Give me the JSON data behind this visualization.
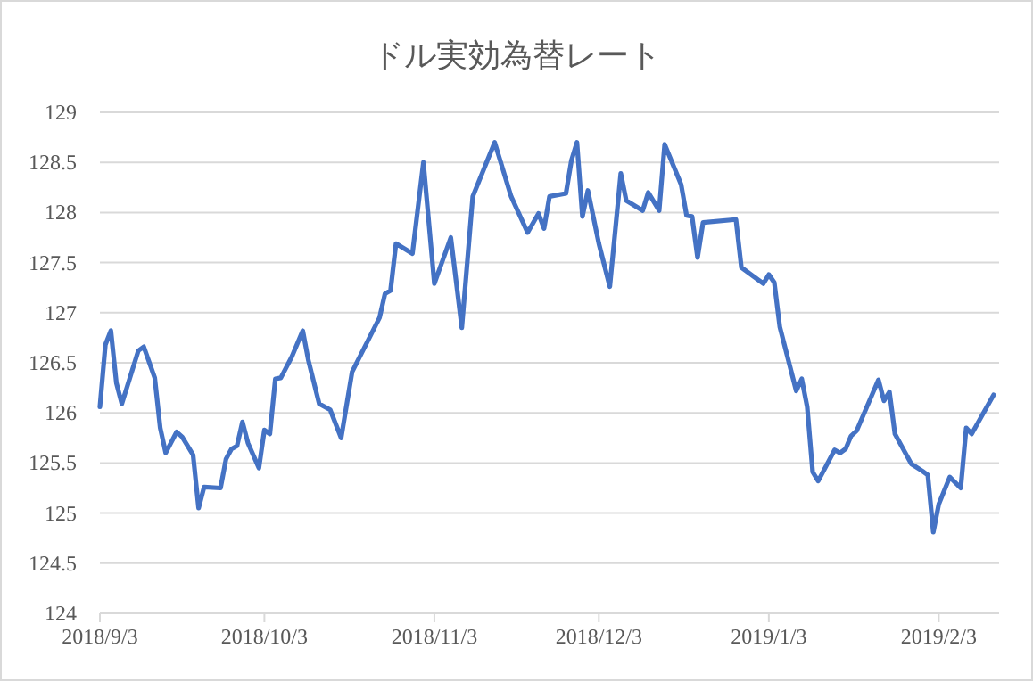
{
  "chart_data": {
    "type": "line",
    "title": "ドル実効為替レート",
    "x": [
      "2018-09-03",
      "2018-09-04",
      "2018-09-05",
      "2018-09-06",
      "2018-09-07",
      "2018-09-10",
      "2018-09-11",
      "2018-09-13",
      "2018-09-14",
      "2018-09-15",
      "2018-09-17",
      "2018-09-18",
      "2018-09-20",
      "2018-09-21",
      "2018-09-22",
      "2018-09-25",
      "2018-09-26",
      "2018-09-27",
      "2018-09-28",
      "2018-09-29",
      "2018-09-30",
      "2018-10-02",
      "2018-10-03",
      "2018-10-04",
      "2018-10-05",
      "2018-10-06",
      "2018-10-08",
      "2018-10-10",
      "2018-10-11",
      "2018-10-13",
      "2018-10-15",
      "2018-10-17",
      "2018-10-19",
      "2018-10-24",
      "2018-10-25",
      "2018-10-26",
      "2018-10-27",
      "2018-10-30",
      "2018-11-01",
      "2018-11-03",
      "2018-11-06",
      "2018-11-08",
      "2018-11-10",
      "2018-11-14",
      "2018-11-17",
      "2018-11-20",
      "2018-11-22",
      "2018-11-23",
      "2018-11-24",
      "2018-11-27",
      "2018-11-28",
      "2018-11-29",
      "2018-11-30",
      "2018-12-01",
      "2018-12-03",
      "2018-12-05",
      "2018-12-07",
      "2018-12-08",
      "2018-12-11",
      "2018-12-12",
      "2018-12-14",
      "2018-12-15",
      "2018-12-18",
      "2018-12-19",
      "2018-12-20",
      "2018-12-21",
      "2018-12-22",
      "2018-12-28",
      "2018-12-29",
      "2019-01-02",
      "2019-01-03",
      "2019-01-04",
      "2019-01-05",
      "2019-01-08",
      "2019-01-09",
      "2019-01-10",
      "2019-01-11",
      "2019-01-12",
      "2019-01-15",
      "2019-01-16",
      "2019-01-17",
      "2019-01-18",
      "2019-01-19",
      "2019-01-23",
      "2019-01-24",
      "2019-01-25",
      "2019-01-26",
      "2019-01-29",
      "2019-01-31",
      "2019-02-01",
      "2019-02-02",
      "2019-02-03",
      "2019-02-05",
      "2019-02-07",
      "2019-02-08",
      "2019-02-09",
      "2019-02-13"
    ],
    "series": [
      {
        "color": "#4472c4",
        "values": [
          126.06,
          126.68,
          126.82,
          126.3,
          126.09,
          126.62,
          126.66,
          126.35,
          125.85,
          125.6,
          125.81,
          125.76,
          125.58,
          125.05,
          125.26,
          125.25,
          125.54,
          125.64,
          125.67,
          125.91,
          125.7,
          125.45,
          125.83,
          125.79,
          126.34,
          126.35,
          126.56,
          126.82,
          126.53,
          126.09,
          126.03,
          125.75,
          126.41,
          126.95,
          127.19,
          127.22,
          127.69,
          127.59,
          128.5,
          127.29,
          127.75,
          126.85,
          128.16,
          128.7,
          128.16,
          127.8,
          127.99,
          127.84,
          128.16,
          128.19,
          128.52,
          128.7,
          127.96,
          128.22,
          127.69,
          127.26,
          128.39,
          128.12,
          128.02,
          128.2,
          128.02,
          128.68,
          128.28,
          127.97,
          127.96,
          127.55,
          127.9,
          127.93,
          127.45,
          127.29,
          127.38,
          127.3,
          126.86,
          126.22,
          126.34,
          126.06,
          125.41,
          125.32,
          125.63,
          125.6,
          125.64,
          125.77,
          125.82,
          126.33,
          126.12,
          126.21,
          125.79,
          125.49,
          125.42,
          125.38,
          124.81,
          125.09,
          125.36,
          125.25,
          125.85,
          125.79,
          126.18
        ]
      }
    ],
    "xlim": [
      "2018-09-03",
      "2019-02-14"
    ],
    "xticks": [
      {
        "value": "2018-09-03",
        "label": "2018/9/3"
      },
      {
        "value": "2018-10-03",
        "label": "2018/10/3"
      },
      {
        "value": "2018-11-03",
        "label": "2018/11/3"
      },
      {
        "value": "2018-12-03",
        "label": "2018/12/3"
      },
      {
        "value": "2019-01-03",
        "label": "2019/1/3"
      },
      {
        "value": "2019-02-03",
        "label": "2019/2/3"
      }
    ],
    "ylim": [
      124,
      129
    ],
    "yticks": [
      124,
      124.5,
      125,
      125.5,
      126,
      126.5,
      127,
      127.5,
      128,
      128.5,
      129
    ],
    "grid": "y",
    "marker": "none",
    "line_style": "solid"
  }
}
